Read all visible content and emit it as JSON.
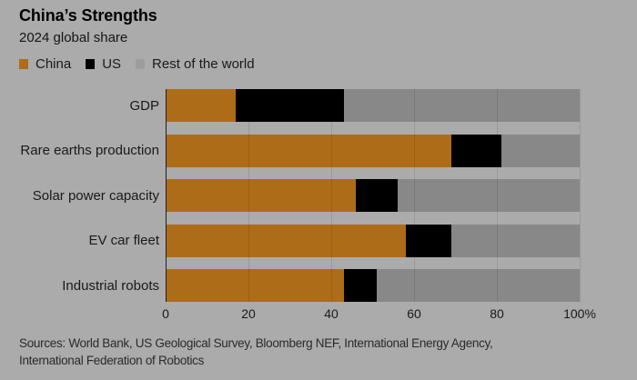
{
  "header": {
    "title": "China’s Strengths",
    "subtitle": "2024 global share"
  },
  "legend": [
    {
      "label": "China",
      "color": "#ad6c18"
    },
    {
      "label": "US",
      "color": "#000000"
    },
    {
      "label": "Rest of the world",
      "color": "#9d9d9d"
    }
  ],
  "colors": {
    "background": "#ababab",
    "china": "#ad6c18",
    "us": "#000000",
    "rest_of_world_bar": "#888888",
    "axis": "#1f1f1f",
    "text": "#191919"
  },
  "chart_data": {
    "type": "bar",
    "orientation": "horizontal",
    "stacked": true,
    "title": "China’s Strengths",
    "subtitle": "2024 global share",
    "legend_position": "top",
    "grid": true,
    "xlim": [
      0,
      100
    ],
    "categories": [
      "GDP",
      "Rare earths production",
      "Solar power capacity",
      "EV car fleet",
      "Industrial robots"
    ],
    "series": [
      {
        "name": "China",
        "color": "#ad6c18",
        "values": [
          17,
          69,
          46,
          58,
          43
        ]
      },
      {
        "name": "US",
        "color": "#000000",
        "values": [
          26,
          12,
          10,
          11,
          8
        ]
      },
      {
        "name": "Rest of the world",
        "color": "#888888",
        "values": [
          57,
          19,
          44,
          31,
          49
        ]
      }
    ],
    "x_ticks": [
      {
        "value": 0,
        "label": "0"
      },
      {
        "value": 20,
        "label": "20"
      },
      {
        "value": 40,
        "label": "40"
      },
      {
        "value": 60,
        "label": "60"
      },
      {
        "value": 80,
        "label": "80"
      },
      {
        "value": 100,
        "label": "100%"
      }
    ]
  },
  "source": {
    "line1": "Sources: World Bank, US Geological Survey, Bloomberg NEF, International Energy Agency,",
    "line2": "International Federation of Robotics"
  }
}
